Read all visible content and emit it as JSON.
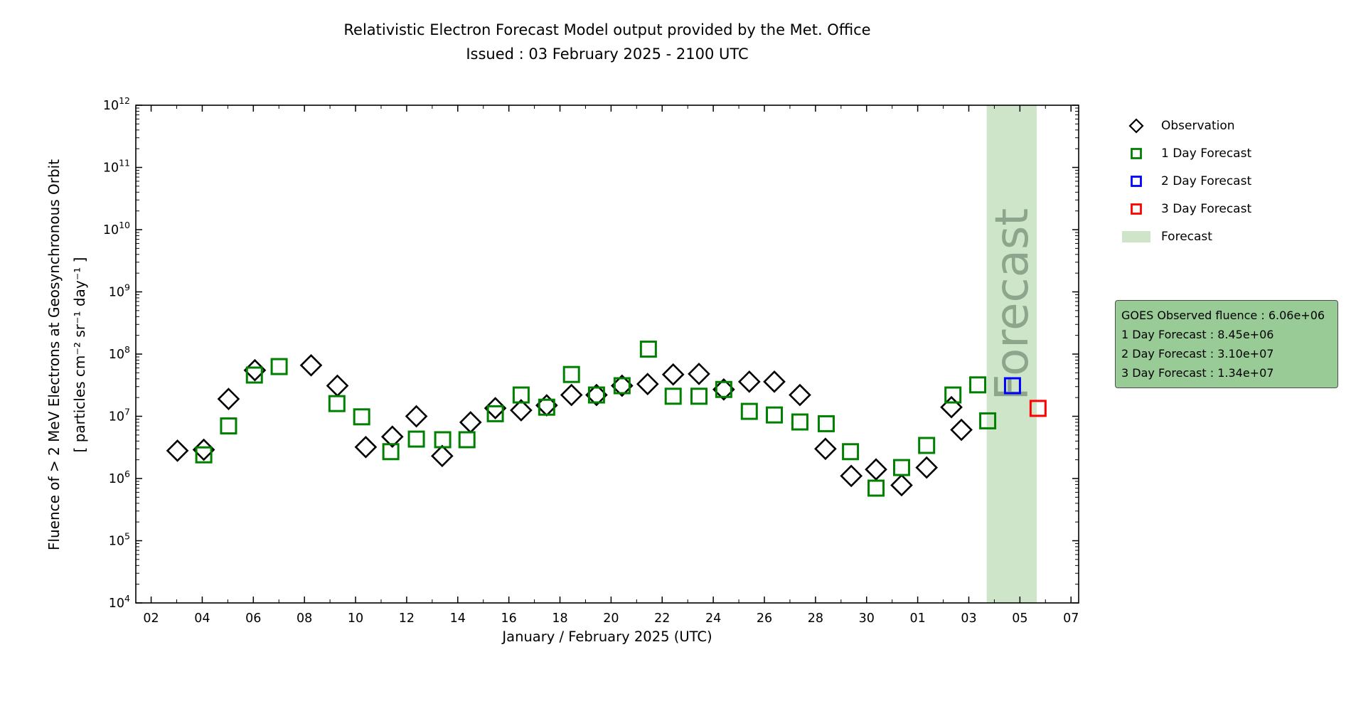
{
  "title": {
    "line1": "Relativistic Electron Forecast Model output provided by the Met. Office",
    "line2": "Issued : 03 February 2025 - 2100 UTC"
  },
  "axes": {
    "xlabel": "January / February 2025 (UTC)",
    "ylabel_line1": "Fluence of > 2 MeV Electrons at Geosynchronous Orbit",
    "ylabel_line2": "[ particles cm⁻² sr⁻¹ day⁻¹ ]"
  },
  "legend": {
    "items": [
      {
        "label": "Observation",
        "marker": "diamond",
        "color": "#000000"
      },
      {
        "label": "1 Day Forecast",
        "marker": "square",
        "color": "#008000"
      },
      {
        "label": "2 Day Forecast",
        "marker": "square",
        "color": "#0000ff"
      },
      {
        "label": "3 Day Forecast",
        "marker": "square",
        "color": "#ff0000"
      },
      {
        "label": "Forecast",
        "marker": "band",
        "color": "#cfe5c9"
      }
    ]
  },
  "infobox": {
    "bg": "#99cb96",
    "lines": [
      "GOES Observed fluence : 6.06e+06",
      "1 Day Forecast : 8.45e+06",
      "2 Day Forecast : 3.10e+07",
      "3 Day Forecast : 1.34e+07"
    ]
  },
  "chart_data": {
    "type": "scatter",
    "title": "Relativistic Electron Forecast Model output provided by the Met. Office",
    "subtitle": "Issued : 03 February 2025 - 2100 UTC",
    "xlabel": "January / February 2025 (UTC)",
    "ylabel": "Fluence of > 2 MeV Electrons at Geosynchronous Orbit [ particles cm-2 sr-1 day-1 ]",
    "x_axis": {
      "unit": "day number (Jan 2 = 2 ... Feb 7 = 38)",
      "domain": [
        1.4,
        38.3
      ],
      "major_tick_days": [
        2,
        4,
        6,
        8,
        10,
        12,
        14,
        16,
        18,
        20,
        22,
        24,
        26,
        28,
        30,
        32,
        34,
        36,
        38
      ],
      "major_tick_labels": [
        "02",
        "04",
        "06",
        "08",
        "10",
        "12",
        "14",
        "16",
        "18",
        "20",
        "22",
        "24",
        "26",
        "28",
        "30",
        "01",
        "03",
        "05",
        "07"
      ],
      "minor_tick_days": [
        3,
        5,
        7,
        9,
        11,
        13,
        15,
        17,
        19,
        21,
        23,
        25,
        27,
        29,
        31,
        33,
        35,
        37
      ]
    },
    "y_axis": {
      "scale": "log",
      "ylim": [
        10000.0,
        1000000000000.0
      ],
      "tick_exponents": [
        4,
        5,
        6,
        7,
        8,
        9,
        10,
        11,
        12
      ]
    },
    "forecast_band": {
      "t_start": 34.7,
      "t_end": 36.66,
      "label": "Forecast",
      "fill": "#cfe5c9",
      "label_color": "#8da58c"
    },
    "series": [
      {
        "name": "Observation",
        "marker": "diamond",
        "color": "#000000",
        "points": [
          {
            "date": "Jan 03",
            "t": 3.03,
            "value": 2800000.0
          },
          {
            "date": "Jan 04",
            "t": 4.06,
            "value": 2900000.0
          },
          {
            "date": "Jan 05",
            "t": 5.03,
            "value": 19000000.0
          },
          {
            "date": "Jan 06",
            "t": 6.06,
            "value": 55000000.0
          },
          {
            "date": "Jan 08",
            "t": 8.26,
            "value": 66000000.0
          },
          {
            "date": "Jan 09",
            "t": 9.29,
            "value": 31000000.0
          },
          {
            "date": "Jan 10",
            "t": 10.4,
            "value": 3200000.0
          },
          {
            "date": "Jan 11",
            "t": 11.44,
            "value": 4700000.0
          },
          {
            "date": "Jan 12",
            "t": 12.38,
            "value": 10000000.0
          },
          {
            "date": "Jan 13",
            "t": 13.39,
            "value": 2300000.0
          },
          {
            "date": "Jan 14",
            "t": 14.5,
            "value": 8000000.0
          },
          {
            "date": "Jan 15",
            "t": 15.47,
            "value": 13500000.0
          },
          {
            "date": "Jan 16",
            "t": 16.48,
            "value": 12500000.0
          },
          {
            "date": "Jan 17",
            "t": 17.48,
            "value": 15000000.0
          },
          {
            "date": "Jan 18",
            "t": 18.45,
            "value": 22000000.0
          },
          {
            "date": "Jan 19",
            "t": 19.43,
            "value": 22000000.0
          },
          {
            "date": "Jan 20",
            "t": 20.43,
            "value": 31000000.0
          },
          {
            "date": "Jan 21",
            "t": 21.43,
            "value": 33000000.0
          },
          {
            "date": "Jan 22",
            "t": 22.43,
            "value": 47000000.0
          },
          {
            "date": "Jan 23",
            "t": 23.44,
            "value": 48000000.0
          },
          {
            "date": "Jan 24",
            "t": 24.41,
            "value": 27000000.0
          },
          {
            "date": "Jan 25",
            "t": 25.41,
            "value": 36000000.0
          },
          {
            "date": "Jan 26",
            "t": 26.39,
            "value": 36000000.0
          },
          {
            "date": "Jan 27",
            "t": 27.39,
            "value": 22000000.0
          },
          {
            "date": "Jan 28",
            "t": 28.39,
            "value": 3000000.0
          },
          {
            "date": "Jan 29",
            "t": 29.4,
            "value": 1100000.0
          },
          {
            "date": "Jan 30",
            "t": 30.37,
            "value": 1400000.0
          },
          {
            "date": "Jan 31",
            "t": 31.37,
            "value": 780000.0
          },
          {
            "date": "Feb 01",
            "t": 32.35,
            "value": 1500000.0
          },
          {
            "date": "Feb 02",
            "t": 33.32,
            "value": 14000000.0
          },
          {
            "date": "Feb 03",
            "t": 33.71,
            "value": 6060000.0
          }
        ]
      },
      {
        "name": "1 Day Forecast",
        "marker": "square",
        "color": "#008000",
        "points": [
          {
            "date": "Jan 04",
            "t": 4.06,
            "value": 2400000.0
          },
          {
            "date": "Jan 05",
            "t": 5.03,
            "value": 7000000.0
          },
          {
            "date": "Jan 06",
            "t": 6.04,
            "value": 46000000.0
          },
          {
            "date": "Jan 07",
            "t": 7.01,
            "value": 63000000.0
          },
          {
            "date": "Jan 09",
            "t": 9.27,
            "value": 16000000.0
          },
          {
            "date": "Jan 10",
            "t": 10.24,
            "value": 9800000.0
          },
          {
            "date": "Jan 11",
            "t": 11.38,
            "value": 2700000.0
          },
          {
            "date": "Jan 12",
            "t": 12.38,
            "value": 4300000.0
          },
          {
            "date": "Jan 13",
            "t": 13.41,
            "value": 4200000.0
          },
          {
            "date": "Jan 14",
            "t": 14.36,
            "value": 4200000.0
          },
          {
            "date": "Jan 15",
            "t": 15.47,
            "value": 11000000.0
          },
          {
            "date": "Jan 16",
            "t": 16.48,
            "value": 22000000.0
          },
          {
            "date": "Jan 17",
            "t": 17.48,
            "value": 14000000.0
          },
          {
            "date": "Jan 18",
            "t": 18.45,
            "value": 47000000.0
          },
          {
            "date": "Jan 19",
            "t": 19.43,
            "value": 22000000.0
          },
          {
            "date": "Jan 20",
            "t": 20.43,
            "value": 31000000.0
          },
          {
            "date": "Jan 21",
            "t": 21.46,
            "value": 120000000.0
          },
          {
            "date": "Jan 22",
            "t": 22.43,
            "value": 21000000.0
          },
          {
            "date": "Jan 23",
            "t": 23.44,
            "value": 21000000.0
          },
          {
            "date": "Jan 24",
            "t": 24.41,
            "value": 27000000.0
          },
          {
            "date": "Jan 25",
            "t": 25.41,
            "value": 12000000.0
          },
          {
            "date": "Jan 26",
            "t": 26.39,
            "value": 10500000.0
          },
          {
            "date": "Jan 27",
            "t": 27.39,
            "value": 8100000.0
          },
          {
            "date": "Jan 28",
            "t": 28.42,
            "value": 7600000.0
          },
          {
            "date": "Jan 29",
            "t": 29.37,
            "value": 2700000.0
          },
          {
            "date": "Jan 30",
            "t": 30.37,
            "value": 700000.0
          },
          {
            "date": "Jan 31",
            "t": 31.37,
            "value": 1500000.0
          },
          {
            "date": "Feb 01",
            "t": 32.35,
            "value": 3400000.0
          },
          {
            "date": "Feb 02",
            "t": 33.38,
            "value": 22000000.0
          },
          {
            "date": "Feb 03",
            "t": 34.35,
            "value": 32000000.0
          },
          {
            "date": "Feb 04",
            "t": 34.74,
            "value": 8450000.0
          }
        ]
      },
      {
        "name": "2 Day Forecast",
        "marker": "square",
        "color": "#0000ff",
        "points": [
          {
            "date": "Feb 05",
            "t": 35.71,
            "value": 31000000.0
          }
        ]
      },
      {
        "name": "3 Day Forecast",
        "marker": "square",
        "color": "#ff0000",
        "points": [
          {
            "date": "Feb 06",
            "t": 36.71,
            "value": 13400000.0
          }
        ]
      }
    ]
  }
}
